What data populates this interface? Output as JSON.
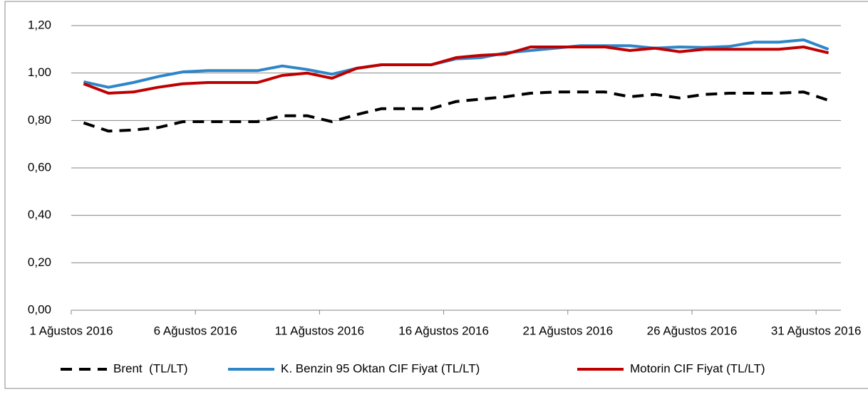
{
  "chart_data": {
    "type": "line",
    "x": [
      "2016-08-01",
      "2016-08-02",
      "2016-08-03",
      "2016-08-04",
      "2016-08-05",
      "2016-08-06",
      "2016-08-07",
      "2016-08-08",
      "2016-08-09",
      "2016-08-10",
      "2016-08-11",
      "2016-08-12",
      "2016-08-13",
      "2016-08-14",
      "2016-08-15",
      "2016-08-16",
      "2016-08-17",
      "2016-08-18",
      "2016-08-19",
      "2016-08-20",
      "2016-08-21",
      "2016-08-22",
      "2016-08-23",
      "2016-08-24",
      "2016-08-25",
      "2016-08-26",
      "2016-08-27",
      "2016-08-28",
      "2016-08-29",
      "2016-08-30",
      "2016-08-31"
    ],
    "series": [
      {
        "name": "Brent  (TL/LT)",
        "color": "#000000",
        "dash": true,
        "values": [
          0.79,
          0.755,
          0.76,
          0.77,
          0.795,
          0.795,
          0.795,
          0.795,
          0.82,
          0.82,
          0.795,
          0.825,
          0.85,
          0.85,
          0.85,
          0.88,
          0.89,
          0.9,
          0.915,
          0.92,
          0.92,
          0.92,
          0.9,
          0.91,
          0.895,
          0.91,
          0.915,
          0.915,
          0.915,
          0.92,
          0.885
        ]
      },
      {
        "name": "K. Benzin 95 Oktan CIF Fiyat (TL/LT)",
        "color": "#2e86c8",
        "values": [
          0.963,
          0.94,
          0.96,
          0.985,
          1.005,
          1.01,
          1.01,
          1.01,
          1.03,
          1.015,
          0.995,
          1.02,
          1.035,
          1.035,
          1.035,
          1.06,
          1.065,
          1.085,
          1.095,
          1.105,
          1.115,
          1.115,
          1.115,
          1.105,
          1.11,
          1.108,
          1.112,
          1.13,
          1.13,
          1.14,
          1.1
        ]
      },
      {
        "name": "Motorin CIF Fiyat (TL/LT)",
        "color": "#c00000",
        "values": [
          0.955,
          0.915,
          0.92,
          0.94,
          0.955,
          0.96,
          0.96,
          0.96,
          0.99,
          1.0,
          0.978,
          1.02,
          1.035,
          1.035,
          1.035,
          1.065,
          1.075,
          1.08,
          1.11,
          1.11,
          1.11,
          1.11,
          1.095,
          1.105,
          1.09,
          1.1,
          1.1,
          1.1,
          1.1,
          1.11,
          1.085
        ]
      }
    ],
    "xlim": [
      "2016-08-01",
      "2016-09-01"
    ],
    "xticks": [
      {
        "value": "2016-08-01",
        "label": "1 Ağustos 2016"
      },
      {
        "value": "2016-08-06",
        "label": "6 Ağustos 2016"
      },
      {
        "value": "2016-08-11",
        "label": "11 Ağustos 2016"
      },
      {
        "value": "2016-08-16",
        "label": "16 Ağustos 2016"
      },
      {
        "value": "2016-08-21",
        "label": "21 Ağustos 2016"
      },
      {
        "value": "2016-08-26",
        "label": "26 Ağustos 2016"
      },
      {
        "value": "2016-08-31",
        "label": "31 Ağustos 2016"
      }
    ],
    "ylim": [
      0,
      1.2
    ],
    "yticks": [
      {
        "value": 0,
        "label": "0,00"
      },
      {
        "value": 0.2,
        "label": "0,20"
      },
      {
        "value": 0.4,
        "label": "0,40"
      },
      {
        "value": 0.6,
        "label": "0,60"
      },
      {
        "value": 0.8,
        "label": "0,80"
      },
      {
        "value": 1.0,
        "label": "1,00"
      },
      {
        "value": 1.2,
        "label": "1,20"
      }
    ],
    "grid": true,
    "legend": "bottom"
  }
}
